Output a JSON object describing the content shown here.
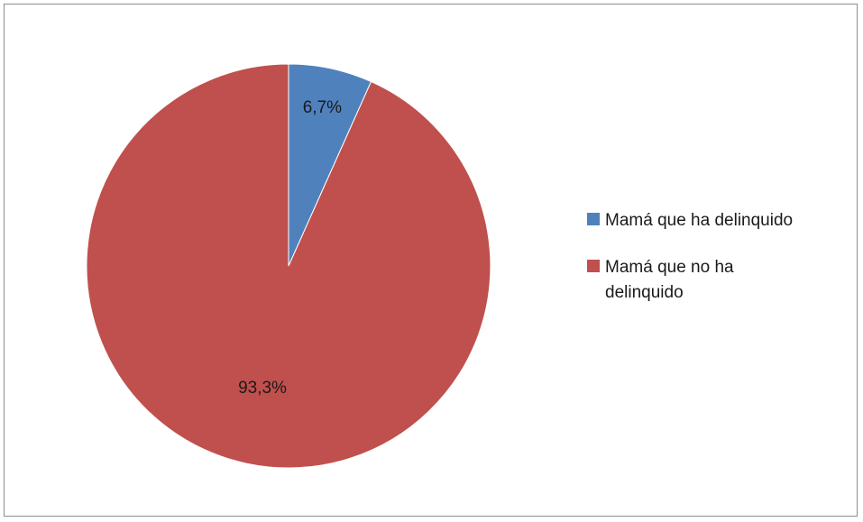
{
  "chart_data": {
    "type": "pie",
    "title": "",
    "categories": [
      "Mamá que ha delinquido",
      "Mamá que no ha delinquido"
    ],
    "values": [
      6.7,
      93.3
    ],
    "data_labels": [
      "6,7%",
      "93,3%"
    ],
    "colors": [
      "#4f81bd",
      "#c0504d"
    ],
    "legend": "right",
    "start_angle": "top",
    "direction": "clockwise"
  }
}
